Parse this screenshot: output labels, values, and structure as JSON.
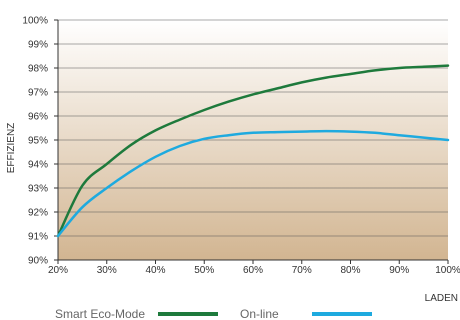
{
  "chart_data": {
    "type": "line",
    "title": "",
    "xlabel": "LADEN",
    "ylabel": "EFFIZIENZ",
    "x_tick_labels": [
      "20%",
      "30%",
      "40%",
      "50%",
      "60%",
      "70%",
      "80%",
      "90%",
      "100%"
    ],
    "y_tick_labels": [
      "90%",
      "91%",
      "92%",
      "93%",
      "94%",
      "95%",
      "96%",
      "97%",
      "98%",
      "99%",
      "100%"
    ],
    "xlim": [
      20,
      100
    ],
    "ylim": [
      90,
      100
    ],
    "grid": "horizontal",
    "legend_position": "bottom",
    "background_gradient": [
      "#ffffff",
      "#d2b591"
    ],
    "series": [
      {
        "name": "Smart Eco-Mode",
        "color": "#1e7a3c",
        "x": [
          20,
          25,
          30,
          35,
          40,
          45,
          50,
          55,
          60,
          65,
          70,
          75,
          80,
          85,
          90,
          95,
          100
        ],
        "y": [
          91.0,
          93.1,
          94.0,
          94.8,
          95.4,
          95.85,
          96.25,
          96.6,
          96.9,
          97.15,
          97.4,
          97.6,
          97.75,
          97.9,
          98.0,
          98.05,
          98.1
        ]
      },
      {
        "name": "On-line",
        "color": "#1eaadf",
        "x": [
          20,
          25,
          30,
          35,
          40,
          45,
          50,
          55,
          60,
          65,
          70,
          75,
          80,
          85,
          90,
          95,
          100
        ],
        "y": [
          91.0,
          92.2,
          93.0,
          93.7,
          94.3,
          94.75,
          95.05,
          95.2,
          95.3,
          95.33,
          95.35,
          95.37,
          95.35,
          95.3,
          95.2,
          95.1,
          95.0
        ]
      }
    ]
  }
}
